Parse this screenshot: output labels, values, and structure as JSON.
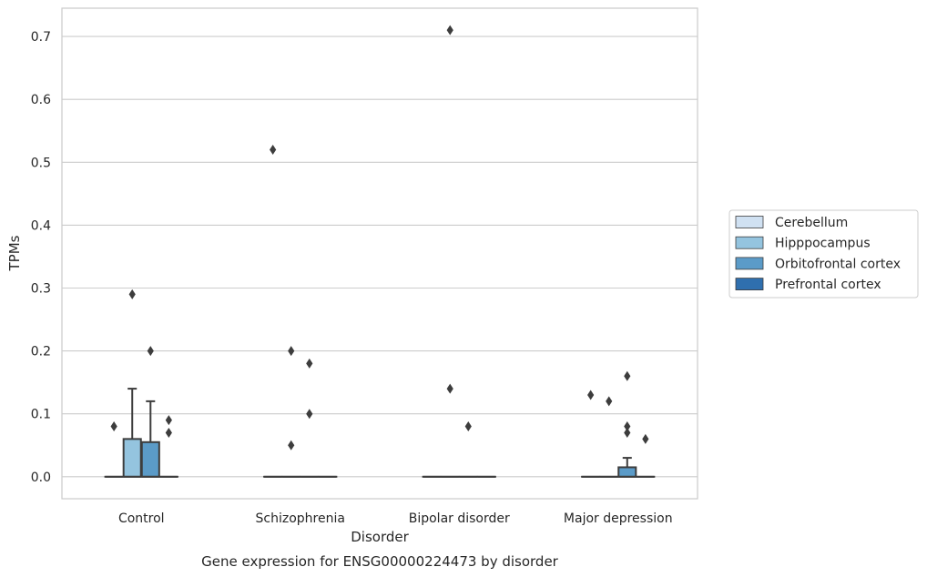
{
  "chart_data": {
    "type": "box",
    "title": "",
    "caption": "Gene expression for ENSG00000224473 by disorder",
    "xlabel": "Disorder",
    "ylabel": "TPMs",
    "categories": [
      "Control",
      "Schizophrenia",
      "Bipolar disorder",
      "Major depression"
    ],
    "yticks": [
      0.0,
      0.1,
      0.2,
      0.3,
      0.4,
      0.5,
      0.6,
      0.7
    ],
    "ytick_labels": [
      "0.0",
      "0.1",
      "0.2",
      "0.3",
      "0.4",
      "0.5",
      "0.6",
      "0.7"
    ],
    "ylim": [
      -0.035,
      0.745
    ],
    "grid": true,
    "legend_position": "right",
    "series": [
      {
        "name": "Cerebellum",
        "color": "#d0e1f2",
        "boxes": [
          {
            "q1": 0,
            "median": 0,
            "q3": 0,
            "whisker_low": 0,
            "whisker_high": 0,
            "outliers": [
              0.08
            ]
          },
          {
            "q1": 0,
            "median": 0,
            "q3": 0,
            "whisker_low": 0,
            "whisker_high": 0,
            "outliers": [
              0.52
            ]
          },
          {
            "q1": 0,
            "median": 0,
            "q3": 0,
            "whisker_low": 0,
            "whisker_high": 0,
            "outliers": []
          },
          {
            "q1": 0,
            "median": 0,
            "q3": 0,
            "whisker_low": 0,
            "whisker_high": 0,
            "outliers": [
              0.13
            ]
          }
        ]
      },
      {
        "name": "Hipppocampus",
        "color": "#94c4df",
        "boxes": [
          {
            "q1": 0,
            "median": 0,
            "q3": 0.06,
            "whisker_low": 0,
            "whisker_high": 0.14,
            "outliers": [
              0.29
            ]
          },
          {
            "q1": 0,
            "median": 0,
            "q3": 0,
            "whisker_low": 0,
            "whisker_high": 0,
            "outliers": [
              0.05,
              0.2
            ]
          },
          {
            "q1": 0,
            "median": 0,
            "q3": 0,
            "whisker_low": 0,
            "whisker_high": 0,
            "outliers": [
              0.14,
              0.71
            ]
          },
          {
            "q1": 0,
            "median": 0,
            "q3": 0,
            "whisker_low": 0,
            "whisker_high": 0,
            "outliers": [
              0.12
            ]
          }
        ]
      },
      {
        "name": "Orbitofrontal cortex",
        "color": "#5b9bc8",
        "boxes": [
          {
            "q1": 0,
            "median": 0,
            "q3": 0.055,
            "whisker_low": 0,
            "whisker_high": 0.12,
            "outliers": [
              0.2
            ]
          },
          {
            "q1": 0,
            "median": 0,
            "q3": 0,
            "whisker_low": 0,
            "whisker_high": 0,
            "outliers": [
              0.1,
              0.18
            ]
          },
          {
            "q1": 0,
            "median": 0,
            "q3": 0,
            "whisker_low": 0,
            "whisker_high": 0,
            "outliers": [
              0.08
            ]
          },
          {
            "q1": 0,
            "median": 0,
            "q3": 0.015,
            "whisker_low": 0,
            "whisker_high": 0.03,
            "outliers": [
              0.07,
              0.08,
              0.16
            ]
          }
        ]
      },
      {
        "name": "Prefrontal cortex",
        "color": "#2f6fae",
        "boxes": [
          {
            "q1": 0,
            "median": 0,
            "q3": 0,
            "whisker_low": 0,
            "whisker_high": 0,
            "outliers": [
              0.07,
              0.09
            ]
          },
          {
            "q1": 0,
            "median": 0,
            "q3": 0,
            "whisker_low": 0,
            "whisker_high": 0,
            "outliers": []
          },
          {
            "q1": 0,
            "median": 0,
            "q3": 0,
            "whisker_low": 0,
            "whisker_high": 0,
            "outliers": []
          },
          {
            "q1": 0,
            "median": 0,
            "q3": 0,
            "whisker_low": 0,
            "whisker_high": 0,
            "outliers": [
              0.06
            ]
          }
        ]
      }
    ],
    "colors": {
      "grid": "#cccccc",
      "frame": "#cccccc",
      "box_edge": "#3d3d3d",
      "outlier": "#3d3d3d"
    }
  }
}
